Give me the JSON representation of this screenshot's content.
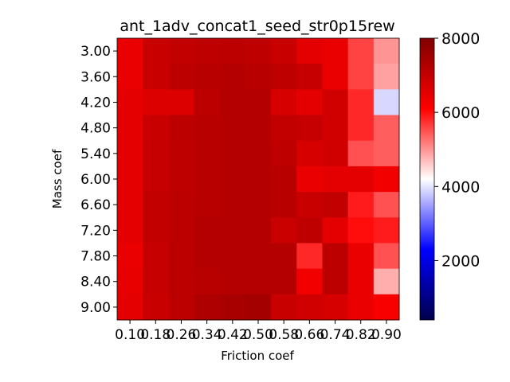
{
  "chart_data": {
    "type": "heatmap",
    "title": "ant_1adv_concat1_seed_str0p15rew",
    "xlabel": "Friction coef",
    "ylabel": "Mass coef",
    "x_categories": [
      "0.10",
      "0.18",
      "0.26",
      "0.34",
      "0.42",
      "0.50",
      "0.58",
      "0.66",
      "0.74",
      "0.82",
      "0.90"
    ],
    "y_categories": [
      "3.00",
      "3.60",
      "4.20",
      "4.80",
      "5.40",
      "6.00",
      "6.60",
      "7.20",
      "7.80",
      "8.40",
      "9.00"
    ],
    "colorbar": {
      "min": 400,
      "max": 8000,
      "ticks": [
        2000,
        4000,
        6000,
        8000
      ],
      "tick_labels": [
        "2000",
        "4000",
        "6000",
        "8000"
      ],
      "colormap": "seismic"
    },
    "values": [
      [
        6400,
        6900,
        7000,
        7050,
        7100,
        7050,
        6900,
        6500,
        6400,
        5600,
        5000
      ],
      [
        6400,
        6900,
        7100,
        7150,
        7200,
        7150,
        7050,
        6950,
        6400,
        5600,
        4900
      ],
      [
        6500,
        6600,
        6600,
        7100,
        7200,
        7200,
        6700,
        6500,
        6800,
        5800,
        3900
      ],
      [
        6500,
        6900,
        7100,
        7150,
        7200,
        7200,
        7000,
        6950,
        6800,
        5800,
        5400
      ],
      [
        6500,
        6950,
        7050,
        7150,
        7200,
        7200,
        7050,
        6700,
        6800,
        5500,
        5400
      ],
      [
        6500,
        6950,
        7050,
        7150,
        7200,
        7200,
        7150,
        6400,
        6500,
        6500,
        6300
      ],
      [
        6500,
        7000,
        7100,
        7150,
        7200,
        7200,
        7150,
        6900,
        7000,
        5900,
        5500
      ],
      [
        6500,
        7000,
        7100,
        7200,
        7200,
        7200,
        6900,
        7050,
        6500,
        6000,
        5900
      ],
      [
        6400,
        6950,
        7100,
        7200,
        7200,
        7200,
        7200,
        5800,
        7100,
        6400,
        5500
      ],
      [
        6450,
        6950,
        7100,
        7150,
        7200,
        7200,
        7200,
        6300,
        7100,
        6400,
        4800
      ],
      [
        6500,
        6900,
        7100,
        7300,
        7400,
        7450,
        6900,
        6800,
        6700,
        6400,
        6200
      ]
    ]
  }
}
